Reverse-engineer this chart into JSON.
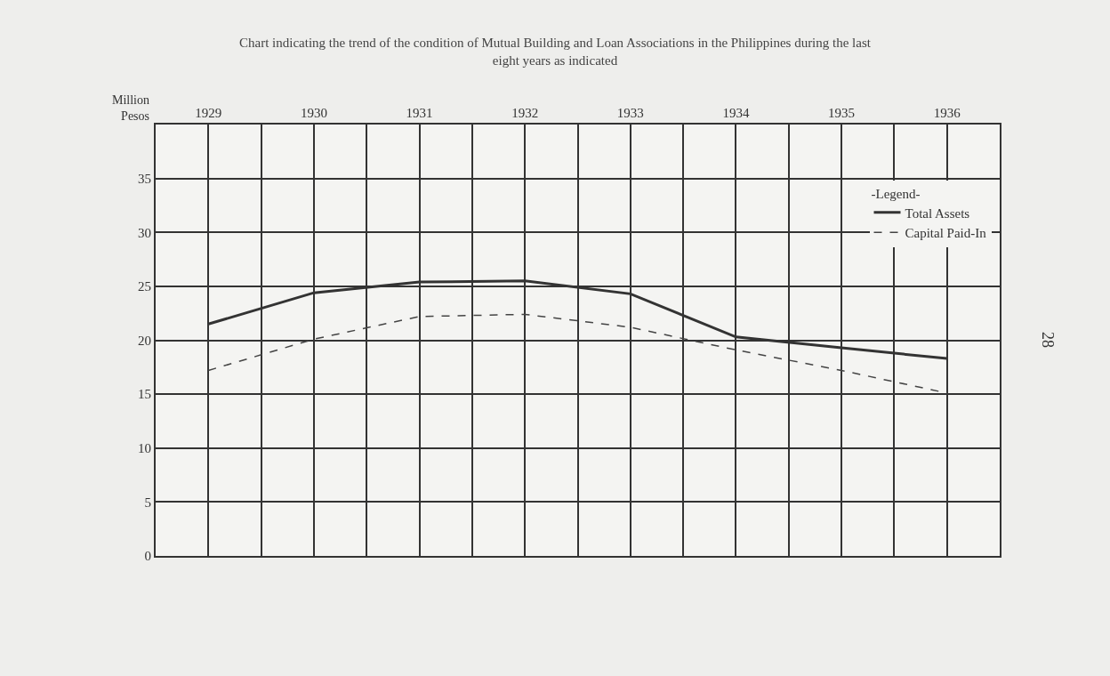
{
  "chart_data": {
    "type": "line",
    "title": "Chart indicating the trend of the condition of Mutual Building and Loan Associations in the Philippines during the last eight years as indicated",
    "ylabel": "Million Pesos",
    "legend_title": "-Legend-",
    "x": [
      1929,
      1930,
      1931,
      1932,
      1933,
      1934,
      1935,
      1936
    ],
    "series": [
      {
        "name": "Total Assets",
        "color": "#333333",
        "line_style": "solid",
        "values": [
          21.5,
          24.4,
          25.4,
          25.5,
          24.3,
          20.3,
          19.3,
          18.3
        ]
      },
      {
        "name": "Capital Paid-In",
        "color": "#444444",
        "line_style": "dashed",
        "values": [
          17.2,
          20.1,
          22.2,
          22.4,
          21.2,
          19.1,
          17.2,
          15.1
        ]
      }
    ],
    "xlim": [
      1928.5,
      1936.5
    ],
    "xticks": [
      1929,
      {
        "value": 1929.5,
        "label": null
      },
      1930,
      {
        "value": 1930.5,
        "label": null
      },
      1931,
      {
        "value": 1931.5,
        "label": null
      },
      1932,
      {
        "value": 1932.5,
        "label": null
      },
      1933,
      {
        "value": 1933.5,
        "label": null
      },
      1934,
      {
        "value": 1934.5,
        "label": null
      },
      1935,
      {
        "value": 1935.5,
        "label": null
      },
      1936
    ],
    "ylim": [
      0,
      40
    ],
    "yticks": [
      0,
      5,
      10,
      15,
      20,
      25,
      30,
      35
    ],
    "grid": true,
    "legend": "top right",
    "marker": "none",
    "annotations": [
      "28"
    ]
  }
}
